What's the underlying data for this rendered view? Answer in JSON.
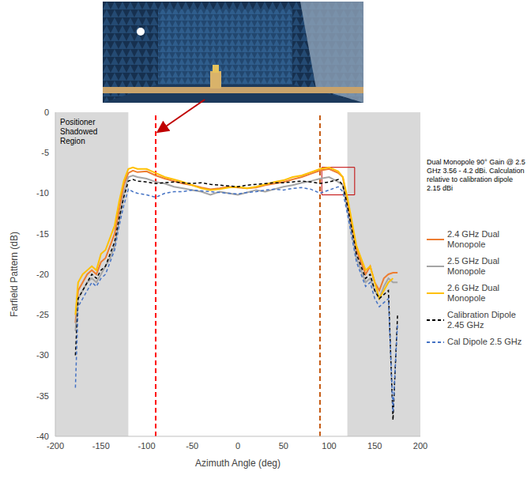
{
  "chart_data": {
    "type": "line",
    "x_label": "Azimuth Angle (deg)",
    "y_label": "Farfield Pattern (dB)",
    "x": [
      -178,
      -175,
      -170,
      -165,
      -160,
      -155,
      -150,
      -145,
      -140,
      -135,
      -130,
      -125,
      -120,
      -115,
      -110,
      -100,
      -90,
      -80,
      -70,
      -60,
      -50,
      -40,
      -30,
      -20,
      -10,
      0,
      10,
      20,
      30,
      40,
      50,
      60,
      70,
      80,
      90,
      100,
      110,
      115,
      120,
      125,
      130,
      135,
      140,
      145,
      150,
      155,
      160,
      165,
      170,
      175,
      178
    ],
    "series": [
      {
        "name": "2.4 GHz Dual Monopole",
        "color": "#ed7d31",
        "line_style": "solid",
        "values": [
          -26,
          -22,
          -21,
          -20,
          -19.5,
          -20,
          -18.5,
          -18,
          -16.5,
          -15,
          -12,
          -9,
          -7.5,
          -7.2,
          -7.4,
          -7.3,
          -7.8,
          -8.2,
          -8.5,
          -8.8,
          -9,
          -9.3,
          -9.5,
          -9.4,
          -9.2,
          -9.3,
          -9.4,
          -9.3,
          -9,
          -8.8,
          -8.6,
          -8.3,
          -8,
          -7.6,
          -7.2,
          -7,
          -7.5,
          -8,
          -11,
          -14,
          -17,
          -18.5,
          -20,
          -19,
          -21,
          -22,
          -20.5,
          -20,
          -19.8,
          -19.8,
          null
        ]
      },
      {
        "name": "2.5 GHz Dual Monopole",
        "color": "#a5a5a5",
        "line_style": "solid",
        "values": [
          -27,
          -23,
          -22,
          -21,
          -20.5,
          -21,
          -20,
          -19,
          -18,
          -16.5,
          -13.5,
          -10,
          -8,
          -7.8,
          -8,
          -8.2,
          -8.6,
          -8.8,
          -9.2,
          -9.4,
          -9.6,
          -9.8,
          -10.2,
          -9.8,
          -10,
          -10.2,
          -9.9,
          -9.6,
          -9.8,
          -9.5,
          -9.2,
          -9,
          -8.7,
          -8.5,
          -8.2,
          -8,
          -8.6,
          -9,
          -12,
          -15,
          -18,
          -19.5,
          -21,
          -20.5,
          -22,
          -23,
          -21.5,
          -20.5,
          -21,
          -21,
          null
        ]
      },
      {
        "name": "2.6 GHz Dual Monopole",
        "color": "#ffc000",
        "line_style": "solid",
        "values": [
          -25,
          -21,
          -20,
          -19.5,
          -19,
          -19.5,
          -17.5,
          -17,
          -15.5,
          -14,
          -11,
          -8.5,
          -7,
          -6.8,
          -7,
          -7,
          -7.5,
          -8,
          -8.3,
          -8.6,
          -9,
          -9.4,
          -9.6,
          -9.5,
          -9.3,
          -9.2,
          -9.4,
          -9.2,
          -8.9,
          -8.6,
          -8.4,
          -8,
          -7.8,
          -7.4,
          -7,
          -6.8,
          -7.3,
          -8,
          -10.5,
          -13.5,
          -16.5,
          -18,
          -19.5,
          -19,
          -21,
          -23,
          -22,
          -21,
          -20.5,
          null,
          null
        ]
      },
      {
        "name": "Calibration Dipole 2.45 GHz",
        "color": "#000000",
        "line_style": "dashed",
        "values": [
          -30,
          -23,
          -22,
          -21,
          -20,
          -20.5,
          -19.5,
          -19,
          -17.5,
          -16,
          -13,
          -10.5,
          -8.5,
          -8.3,
          -8.5,
          -8.6,
          -8.8,
          -8.7,
          -8.6,
          -8.7,
          -8.8,
          -8.7,
          -8.9,
          -9,
          -9.1,
          -9.2,
          -9,
          -8.9,
          -8.8,
          -8.7,
          -8.7,
          -8.6,
          -8.5,
          -8.6,
          -8.8,
          -8.6,
          -8.3,
          -9,
          -11.5,
          -14.5,
          -17.5,
          -19,
          -20.5,
          -20,
          -22,
          -23,
          -22.5,
          -22,
          -38,
          -25,
          null
        ]
      },
      {
        "name": "Cal Dipole 2.5 GHz",
        "color": "#4472c4",
        "line_style": "dashed",
        "values": [
          -34,
          -24,
          -23,
          -22,
          -21,
          -21.5,
          -20.5,
          -20,
          -18.5,
          -17,
          -14,
          -11.5,
          -9.5,
          -9.8,
          -10,
          -10.2,
          -10.5,
          -10,
          -9.8,
          -9.8,
          -9.6,
          -9.7,
          -9.8,
          -9.9,
          -10,
          -10.1,
          -9.9,
          -9.8,
          -9.6,
          -9.5,
          -9.6,
          -9.4,
          -9.3,
          -9.5,
          -10,
          -9.6,
          -9.2,
          -9.8,
          -12.5,
          -15.5,
          -18.5,
          -20,
          -21.5,
          -21,
          -23,
          -24,
          -23.5,
          -23,
          -37,
          -26,
          null
        ]
      }
    ],
    "xlim": [
      -200,
      200
    ],
    "xticks": [
      -200,
      -150,
      -100,
      -50,
      0,
      50,
      100,
      150,
      200
    ],
    "ylim": [
      -40,
      0
    ],
    "yticks": [
      -40,
      -35,
      -30,
      -25,
      -20,
      -15,
      -10,
      -5,
      0
    ],
    "grid": false,
    "legend": "right",
    "shaded_regions": [
      {
        "x": [
          -200,
          -120
        ],
        "color": "#d9d9d9",
        "label": "Positioner Shadowed Region"
      },
      {
        "x": [
          120,
          200
        ],
        "color": "#d9d9d9"
      }
    ],
    "reference_lines": [
      {
        "x": -90,
        "color": "#ff0000"
      },
      {
        "x": 90,
        "color": "#c55a11"
      }
    ],
    "annotation": {
      "text": "Dual Monopole 90° Gain @ 2.5 GHz 3.56 - 4.2 dBi. Calculation relative to calibration dipole 2.15 dBi",
      "color": "#c00000",
      "box": {
        "x": [
          92,
          128
        ],
        "y": [
          -10.2,
          -6.8
        ]
      }
    }
  }
}
